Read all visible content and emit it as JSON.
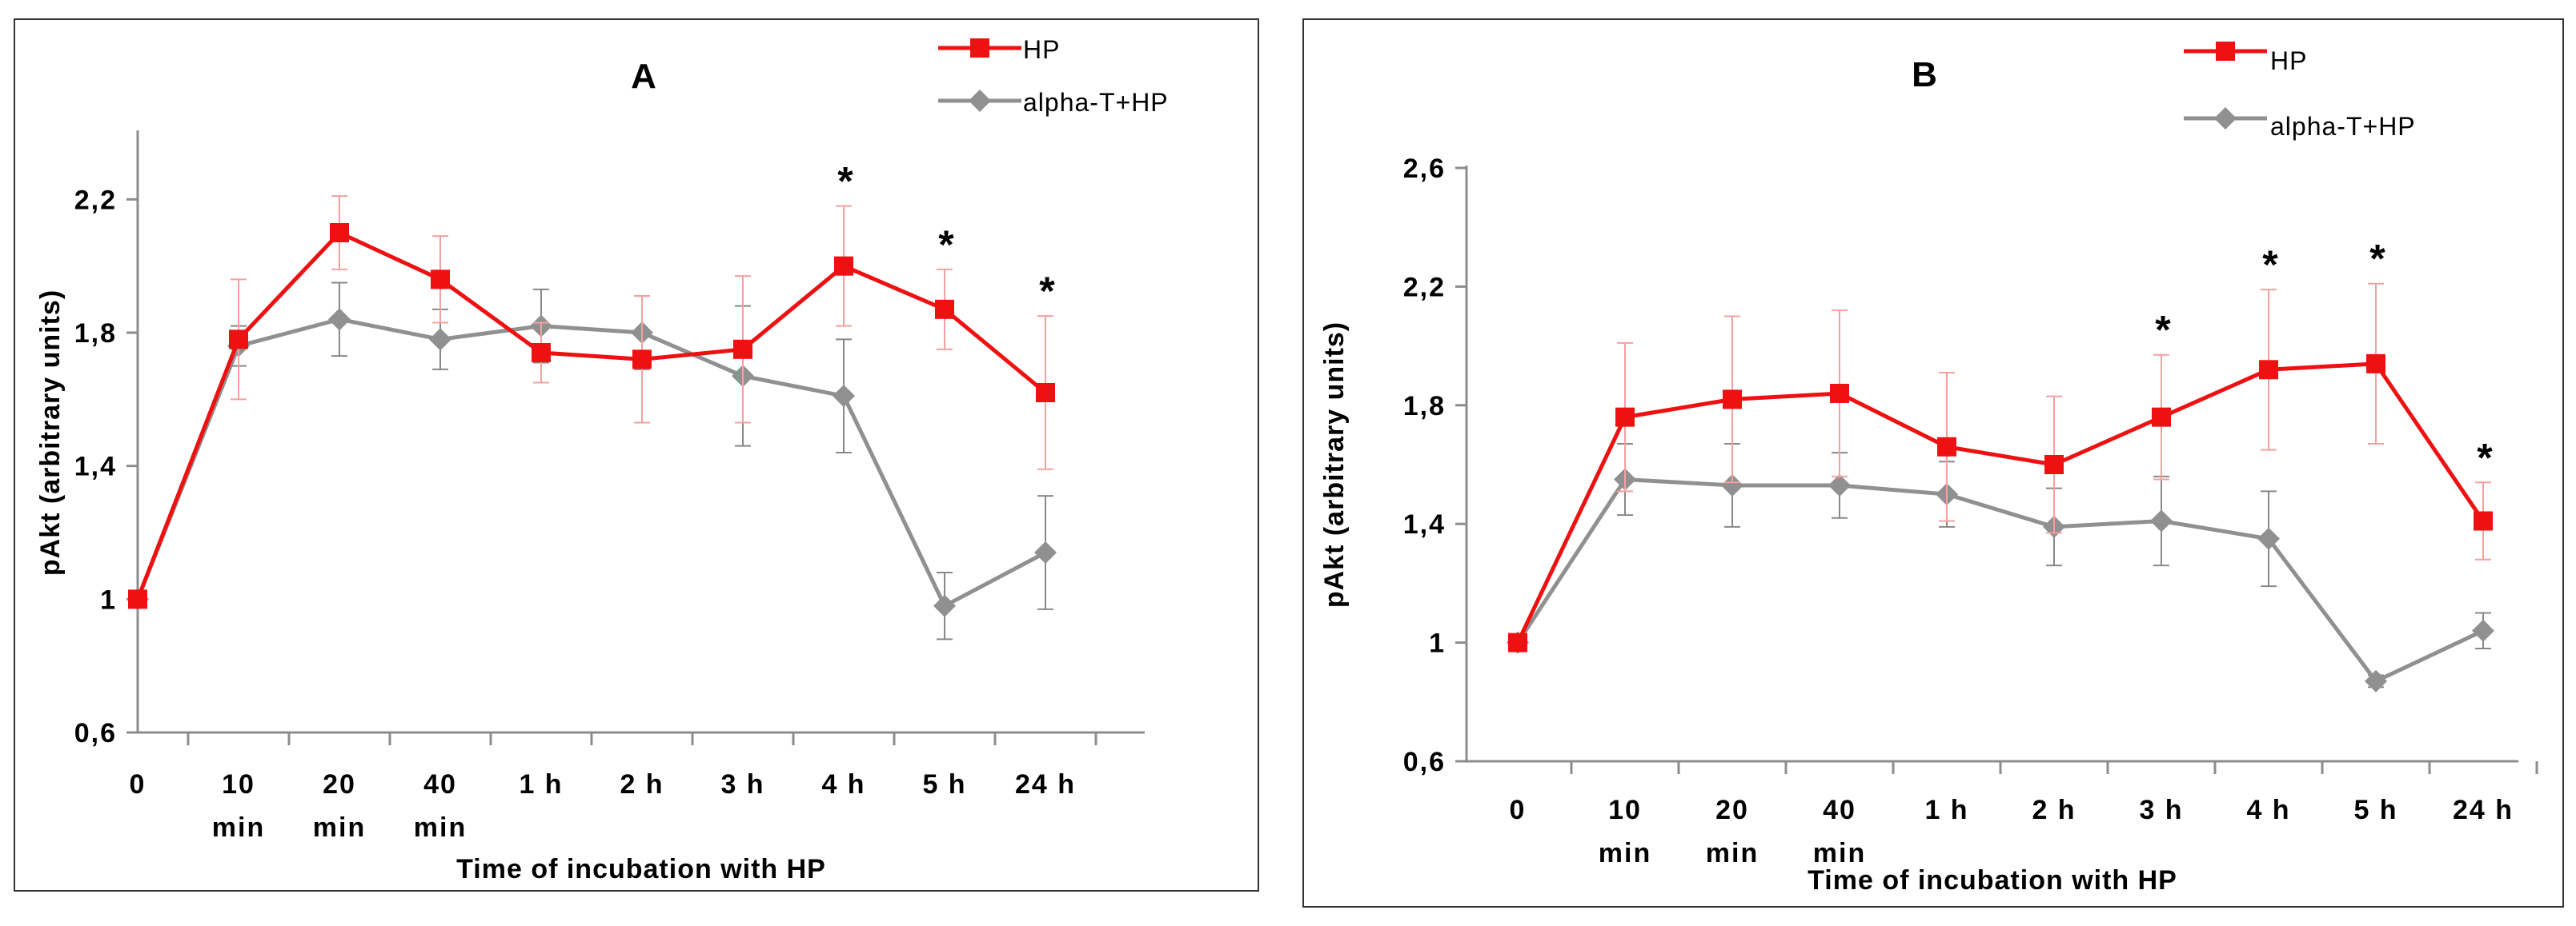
{
  "colors": {
    "hp": "#ee1111",
    "alpha": "#909090",
    "hp_err": "#f4a0a0",
    "alpha_err": "#888888",
    "axis": "#8c8c8c",
    "border": "#333333"
  },
  "chart_data": [
    {
      "type": "line",
      "title": "A",
      "xlabel": "Time of incubation with HP",
      "ylabel": "pAkt (arbitrary units)",
      "ylim": [
        0.6,
        2.4
      ],
      "yticks": [
        "0,6",
        "1",
        "1,4",
        "1,8",
        "2,2"
      ],
      "ytick_values": [
        0.6,
        1.0,
        1.4,
        1.8,
        2.2
      ],
      "categories": [
        [
          "0"
        ],
        [
          "10",
          "min"
        ],
        [
          "20",
          "min"
        ],
        [
          "40",
          "min"
        ],
        [
          "1 h"
        ],
        [
          "2 h"
        ],
        [
          "3 h"
        ],
        [
          "4 h"
        ],
        [
          "5 h"
        ],
        [
          "24 h"
        ]
      ],
      "legend": [
        "HP",
        "alpha-T+HP"
      ],
      "series": [
        {
          "name": "HP",
          "values": [
            1.0,
            1.78,
            2.1,
            1.96,
            1.74,
            1.72,
            1.75,
            2.0,
            1.87,
            1.62
          ],
          "errors": [
            0.0,
            0.18,
            0.11,
            0.13,
            0.09,
            0.19,
            0.22,
            0.18,
            0.12,
            0.23
          ]
        },
        {
          "name": "alpha-T+HP",
          "values": [
            1.0,
            1.76,
            1.84,
            1.78,
            1.82,
            1.8,
            1.67,
            1.61,
            0.98,
            1.14
          ],
          "errors": [
            0.0,
            0.06,
            0.11,
            0.09,
            0.11,
            0.11,
            0.21,
            0.17,
            0.1,
            0.17
          ]
        }
      ],
      "significance": [
        {
          "index": 7,
          "label": "*"
        },
        {
          "index": 8,
          "label": "*"
        },
        {
          "index": 9,
          "label": "*"
        }
      ]
    },
    {
      "type": "line",
      "title": "B",
      "xlabel": "Time of incubation with HP",
      "ylabel": "pAkt (arbitrary units)",
      "ylim": [
        0.6,
        2.6
      ],
      "yticks": [
        "0,6",
        "1",
        "1,4",
        "1,8",
        "2,2",
        "2,6"
      ],
      "ytick_values": [
        0.6,
        1.0,
        1.4,
        1.8,
        2.2,
        2.6
      ],
      "categories": [
        [
          "0"
        ],
        [
          "10",
          "min"
        ],
        [
          "20",
          "min"
        ],
        [
          "40",
          "min"
        ],
        [
          "1 h"
        ],
        [
          "2 h"
        ],
        [
          "3 h"
        ],
        [
          "4 h"
        ],
        [
          "5 h"
        ],
        [
          "24 h"
        ]
      ],
      "legend": [
        "HP",
        "alpha-T+HP"
      ],
      "series": [
        {
          "name": "HP",
          "values": [
            1.0,
            1.76,
            1.82,
            1.84,
            1.66,
            1.6,
            1.76,
            1.92,
            1.94,
            1.41
          ],
          "errors": [
            0.0,
            0.25,
            0.28,
            0.28,
            0.25,
            0.23,
            0.21,
            0.27,
            0.27,
            0.13
          ]
        },
        {
          "name": "alpha-T+HP",
          "values": [
            1.0,
            1.55,
            1.53,
            1.53,
            1.5,
            1.39,
            1.41,
            1.35,
            0.87,
            1.04
          ],
          "errors": [
            0.0,
            0.12,
            0.14,
            0.11,
            0.11,
            0.13,
            0.15,
            0.16,
            0.02,
            0.06
          ]
        }
      ],
      "significance": [
        {
          "index": 6,
          "label": "*"
        },
        {
          "index": 7,
          "label": "*"
        },
        {
          "index": 8,
          "label": "*"
        },
        {
          "index": 9,
          "label": "*"
        }
      ]
    }
  ]
}
